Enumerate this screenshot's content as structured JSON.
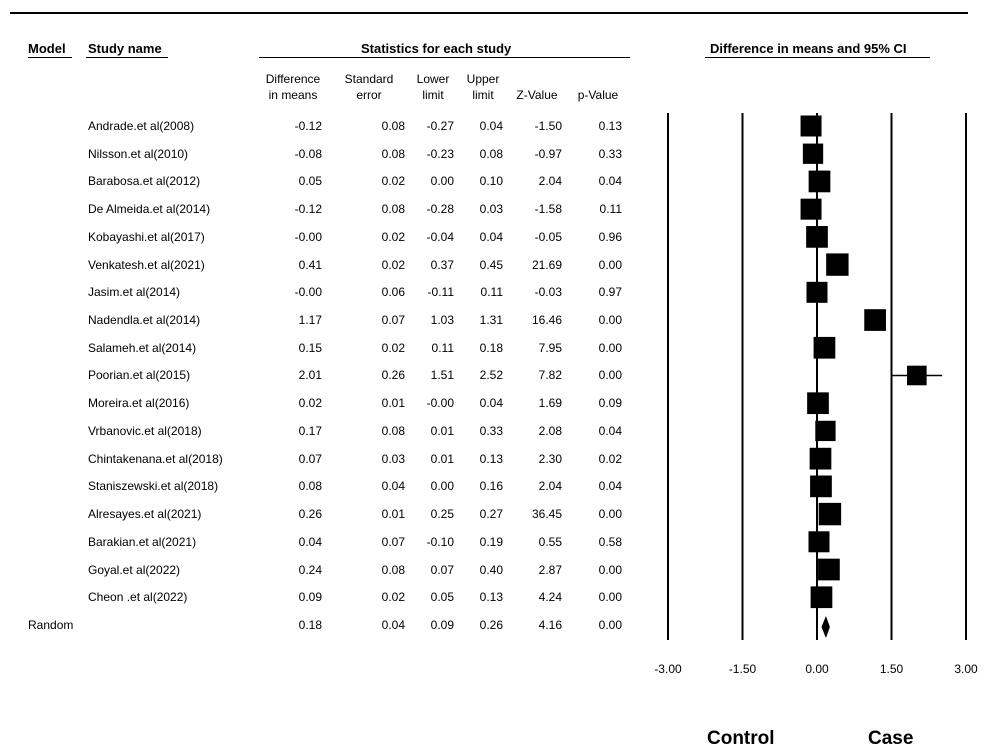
{
  "headers": {
    "model": "Model",
    "study_name": "Study name",
    "statistics": "Statistics for each study",
    "ci_title": "Difference in means and 95% CI"
  },
  "columns": [
    {
      "key": "diff",
      "line1": "Difference",
      "line2": "in means"
    },
    {
      "key": "se",
      "line1": "Standard",
      "line2": "error"
    },
    {
      "key": "lower",
      "line1": "Lower",
      "line2": "limit"
    },
    {
      "key": "upper",
      "line1": "Upper",
      "line2": "limit"
    },
    {
      "key": "z",
      "line1": "",
      "line2": "Z-Value"
    },
    {
      "key": "p",
      "line1": "",
      "line2": "p-Value"
    }
  ],
  "labels": {
    "left": "Control",
    "right": "Case"
  },
  "chart_data": {
    "type": "forest",
    "title": "Difference in means and 95% CI",
    "xlim": [
      -3,
      3
    ],
    "xticks": [
      "-3.00",
      "-1.50",
      "0.00",
      "1.50",
      "3.00"
    ],
    "studies": [
      {
        "name": "Andrade.et al(2008)",
        "diff": "-0.12",
        "se": "0.08",
        "lower": "-0.27",
        "upper": "0.04",
        "z": "-1.50",
        "p": "0.13",
        "weight": 0.5
      },
      {
        "name": "Nilsson.et al(2010)",
        "diff": "-0.08",
        "se": "0.08",
        "lower": "-0.23",
        "upper": "0.08",
        "z": "-0.97",
        "p": "0.33",
        "weight": 0.45
      },
      {
        "name": "Barabosa.et al(2012)",
        "diff": "0.05",
        "se": "0.02",
        "lower": "0.00",
        "upper": "0.10",
        "z": "2.04",
        "p": "0.04",
        "weight": 0.55
      },
      {
        "name": "De Almeida.et al(2014)",
        "diff": "-0.12",
        "se": "0.08",
        "lower": "-0.28",
        "upper": "0.03",
        "z": "-1.58",
        "p": "0.11",
        "weight": 0.5
      },
      {
        "name": "Kobayashi.et al(2017)",
        "diff": "-0.00",
        "se": "0.02",
        "lower": "-0.04",
        "upper": "0.04",
        "z": "-0.05",
        "p": "0.96",
        "weight": 0.55
      },
      {
        "name": "Venkatesh.et al(2021)",
        "diff": "0.41",
        "se": "0.02",
        "lower": "0.37",
        "upper": "0.45",
        "z": "21.69",
        "p": "0.00",
        "weight": 0.6
      },
      {
        "name": "Jasim.et al(2014)",
        "diff": "-0.00",
        "se": "0.06",
        "lower": "-0.11",
        "upper": "0.11",
        "z": "-0.03",
        "p": "0.97",
        "weight": 0.5
      },
      {
        "name": "Nadendla.et al(2014)",
        "diff": "1.17",
        "se": "0.07",
        "lower": "1.03",
        "upper": "1.31",
        "z": "16.46",
        "p": "0.00",
        "weight": 0.55
      },
      {
        "name": "Salameh.et al(2014)",
        "diff": "0.15",
        "se": "0.02",
        "lower": "0.11",
        "upper": "0.18",
        "z": "7.95",
        "p": "0.00",
        "weight": 0.55
      },
      {
        "name": "Poorian.et al(2015)",
        "diff": "2.01",
        "se": "0.26",
        "lower": "1.51",
        "upper": "2.52",
        "z": "7.82",
        "p": "0.00",
        "weight": 0.4
      },
      {
        "name": "Moreira.et al(2016)",
        "diff": "0.02",
        "se": "0.01",
        "lower": "-0.00",
        "upper": "0.04",
        "z": "1.69",
        "p": "0.09",
        "weight": 0.55
      },
      {
        "name": "Vrbanovic.et al(2018)",
        "diff": "0.17",
        "se": "0.08",
        "lower": "0.01",
        "upper": "0.33",
        "z": "2.08",
        "p": "0.04",
        "weight": 0.45
      },
      {
        "name": "Chintakenana.et al(2018)",
        "diff": "0.07",
        "se": "0.03",
        "lower": "0.01",
        "upper": "0.13",
        "z": "2.30",
        "p": "0.02",
        "weight": 0.55
      },
      {
        "name": "Staniszewski.et al(2018)",
        "diff": "0.08",
        "se": "0.04",
        "lower": "0.00",
        "upper": "0.16",
        "z": "2.04",
        "p": "0.04",
        "weight": 0.55
      },
      {
        "name": "Alresayes.et al(2021)",
        "diff": "0.26",
        "se": "0.01",
        "lower": "0.25",
        "upper": "0.27",
        "z": "36.45",
        "p": "0.00",
        "weight": 0.6
      },
      {
        "name": "Barakian.et al(2021)",
        "diff": "0.04",
        "se": "0.07",
        "lower": "-0.10",
        "upper": "0.19",
        "z": "0.55",
        "p": "0.58",
        "weight": 0.5
      },
      {
        "name": "Goyal.et al(2022)",
        "diff": "0.24",
        "se": "0.08",
        "lower": "0.07",
        "upper": "0.40",
        "z": "2.87",
        "p": "0.00",
        "weight": 0.55
      },
      {
        "name": "Cheon .et al(2022)",
        "diff": "0.09",
        "se": "0.02",
        "lower": "0.05",
        "upper": "0.13",
        "z": "4.24",
        "p": "0.00",
        "weight": 0.55
      }
    ],
    "summary": {
      "model": "Random",
      "diff": "0.18",
      "se": "0.04",
      "lower": "0.09",
      "upper": "0.26",
      "z": "4.16",
      "p": "0.00"
    }
  }
}
